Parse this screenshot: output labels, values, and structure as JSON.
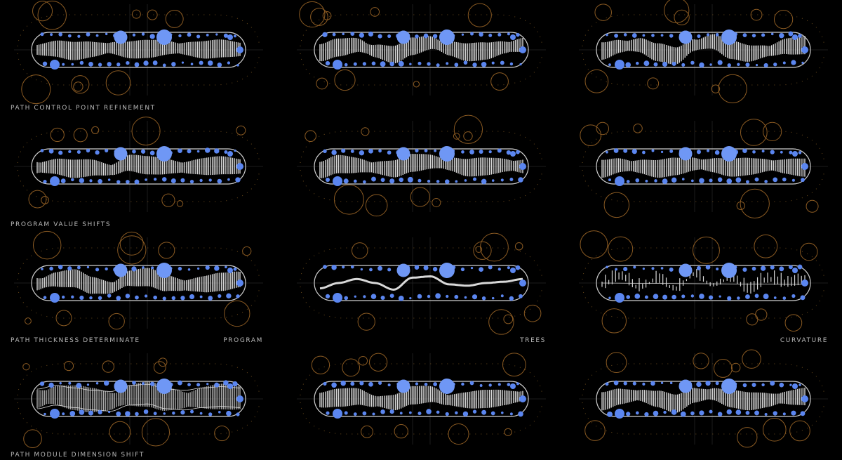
{
  "colors": {
    "background": "#000000",
    "path_fill": "#d8d8d8",
    "nodes": "#5b86f0",
    "context_rings": "#8a5a22",
    "frame": "#cfcfcf",
    "text": "#b9b9b9"
  },
  "row_labels": [
    "PATH CONTROL POINT REFINEMENT",
    "PROGRAM VALUE SHIFTS",
    "PATH THICKNESS DETERMINATE",
    "PATH MODULE DIMENSION SHIFT"
  ],
  "column_labels": [
    "PROGRAM",
    "TREES",
    "CURVATURE"
  ],
  "panels": [
    {
      "name": "panel-r1-c1",
      "style": "band",
      "profile": [
        0.5,
        0.45,
        0.55,
        0.48,
        0.42,
        0.5,
        0.46,
        0.4,
        0.45,
        0.5,
        0.44,
        0.48
      ]
    },
    {
      "name": "panel-r1-c2",
      "style": "band",
      "profile": [
        0.62,
        0.4,
        0.3,
        0.55,
        0.7,
        0.35,
        0.2,
        0.45,
        0.6,
        0.55,
        0.4,
        0.3
      ]
    },
    {
      "name": "panel-r1-c3",
      "style": "band",
      "profile": [
        0.55,
        0.35,
        0.3,
        0.6,
        0.75,
        0.3,
        0.15,
        0.5,
        0.65,
        0.55,
        0.35,
        0.3
      ]
    },
    {
      "name": "panel-r2-c1",
      "style": "band",
      "profile": [
        0.55,
        0.5,
        0.6,
        0.55,
        0.65,
        0.35,
        0.45,
        0.5,
        0.55,
        0.5,
        0.45,
        0.5
      ]
    },
    {
      "name": "panel-r2-c2",
      "style": "band",
      "profile": [
        0.65,
        0.4,
        0.45,
        0.55,
        0.6,
        0.35,
        0.3,
        0.4,
        0.55,
        0.5,
        0.45,
        0.5
      ]
    },
    {
      "name": "panel-r2-c3",
      "style": "band",
      "profile": [
        0.6,
        0.45,
        0.5,
        0.6,
        0.5,
        0.4,
        0.45,
        0.55,
        0.5,
        0.45,
        0.5,
        0.55
      ]
    },
    {
      "name": "panel-r3-c1",
      "style": "band",
      "profile": [
        0.55,
        0.35,
        0.3,
        0.6,
        0.7,
        0.3,
        0.25,
        0.5,
        0.6,
        0.55,
        0.45,
        0.35
      ]
    },
    {
      "name": "panel-r3-c2",
      "style": "line",
      "profile": [
        0.7,
        0.5,
        0.35,
        0.5,
        0.75,
        0.3,
        0.25,
        0.55,
        0.6,
        0.5,
        0.45,
        0.35
      ]
    },
    {
      "name": "panel-r3-c3",
      "style": "spikes",
      "profile": [
        0.6,
        0.3,
        0.7,
        0.4,
        0.75,
        0.2,
        0.6,
        0.35,
        0.8,
        0.4,
        0.55,
        0.45
      ]
    },
    {
      "name": "panel-r4-c1",
      "style": "mesh",
      "profile": [
        0.5,
        0.35,
        0.45,
        0.55,
        0.6,
        0.35,
        0.3,
        0.5,
        0.55,
        0.45,
        0.4,
        0.45
      ]
    },
    {
      "name": "panel-r4-c2",
      "style": "band",
      "profile": [
        0.55,
        0.45,
        0.4,
        0.6,
        0.65,
        0.35,
        0.3,
        0.55,
        0.55,
        0.5,
        0.45,
        0.4
      ]
    },
    {
      "name": "panel-r4-c3",
      "style": "band",
      "profile": [
        0.6,
        0.4,
        0.35,
        0.5,
        0.7,
        0.35,
        0.3,
        0.5,
        0.6,
        0.55,
        0.45,
        0.4
      ]
    }
  ]
}
